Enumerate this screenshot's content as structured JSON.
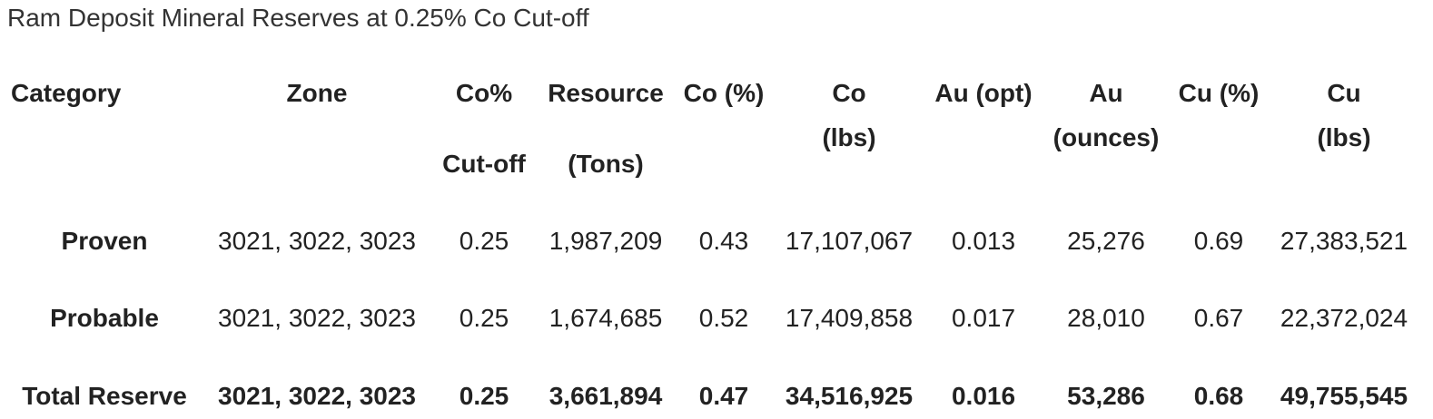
{
  "title": "Ram Deposit Mineral Reserves at 0.25% Co Cut-off",
  "table": {
    "header": [
      [
        "Category"
      ],
      [
        "Zone"
      ],
      [
        "Co%",
        "Cut-off"
      ],
      [
        "Resource",
        "(Tons)"
      ],
      [
        "Co (%)"
      ],
      [
        "Co",
        "(lbs)"
      ],
      [
        "Au (opt)"
      ],
      [
        "Au",
        "(ounces)"
      ],
      [
        "Cu (%)"
      ],
      [
        "Cu",
        "(lbs)"
      ]
    ],
    "rows": [
      [
        "Proven",
        "3021, 3022, 3023",
        "0.25",
        "1,987,209",
        "0.43",
        "17,107,067",
        "0.013",
        "25,276",
        "0.69",
        "27,383,521"
      ],
      [
        "Probable",
        "3021, 3022, 3023",
        "0.25",
        "1,674,685",
        "0.52",
        "17,409,858",
        "0.017",
        "28,010",
        "0.67",
        "22,372,024"
      ],
      [
        "Total Reserve",
        "3021, 3022, 3023",
        "0.25",
        "3,661,894",
        "0.47",
        "34,516,925",
        "0.016",
        "53,286",
        "0.68",
        "49,755,545"
      ]
    ]
  }
}
